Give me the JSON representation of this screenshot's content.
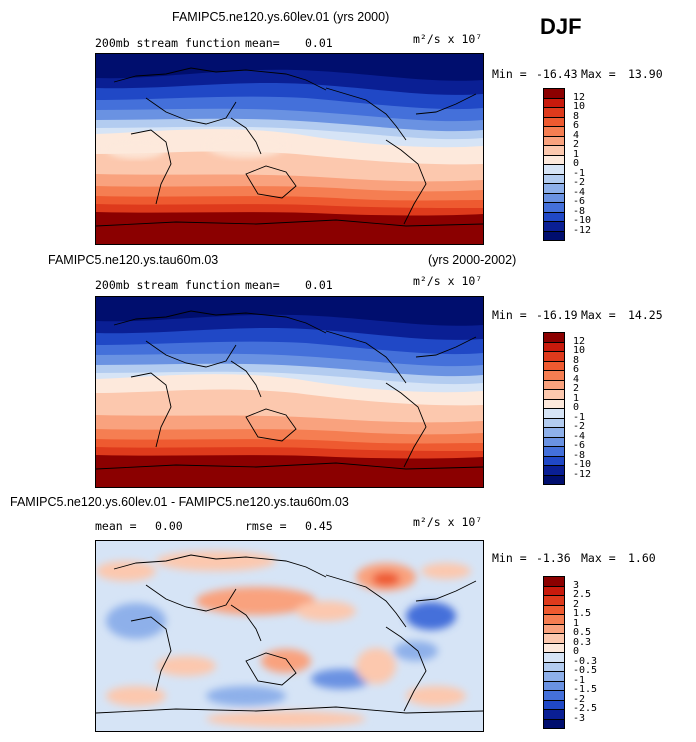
{
  "season": "DJF",
  "panels": [
    {
      "title": "FAMIPC5.ne120.ys.60lev.01 (yrs 2000)",
      "title_right": "",
      "stat1_label": "200mb stream function",
      "stat1_name": "mean=",
      "stat1_value": "0.01",
      "stat2_name": "",
      "stat2_value": "",
      "units": "m²/s x 10⁷",
      "min_label": "Min =",
      "min_value": "-16.43",
      "max_label": "Max =",
      "max_value": "13.90",
      "levels": [
        "12",
        "10",
        "8",
        "6",
        "4",
        "2",
        "1",
        "0",
        "-1",
        "-2",
        "-4",
        "-6",
        "-8",
        "-10",
        "-12"
      ],
      "colors": [
        "#8b0000",
        "#c81a0c",
        "#de3a1c",
        "#ee5a30",
        "#f57e52",
        "#f9a27e",
        "#fcc8ae",
        "#fde9dc",
        "#d6e4f6",
        "#b3ccf0",
        "#8eb0ea",
        "#6a92e2",
        "#4470da",
        "#2048c6",
        "#0a1f94",
        "#000e6e"
      ]
    },
    {
      "title": "FAMIPC5.ne120.ys.tau60m.03",
      "title_right": "(yrs 2000-2002)",
      "stat1_label": "200mb stream function",
      "stat1_name": "mean=",
      "stat1_value": "0.01",
      "stat2_name": "",
      "stat2_value": "",
      "units": "m²/s x 10⁷",
      "min_label": "Min =",
      "min_value": "-16.19",
      "max_label": "Max =",
      "max_value": "14.25",
      "levels": [
        "12",
        "10",
        "8",
        "6",
        "4",
        "2",
        "1",
        "0",
        "-1",
        "-2",
        "-4",
        "-6",
        "-8",
        "-10",
        "-12"
      ],
      "colors": [
        "#8b0000",
        "#c81a0c",
        "#de3a1c",
        "#ee5a30",
        "#f57e52",
        "#f9a27e",
        "#fcc8ae",
        "#fde9dc",
        "#d6e4f6",
        "#b3ccf0",
        "#8eb0ea",
        "#6a92e2",
        "#4470da",
        "#2048c6",
        "#0a1f94",
        "#000e6e"
      ]
    },
    {
      "title": "FAMIPC5.ne120.ys.60lev.01 - FAMIPC5.ne120.ys.tau60m.03",
      "title_right": "",
      "stat1_label": "",
      "stat1_name": "mean =",
      "stat1_value": "0.00",
      "stat2_name": "rmse =",
      "stat2_value": "0.45",
      "units": "m²/s x 10⁷",
      "min_label": "Min =",
      "min_value": "-1.36",
      "max_label": "Max =",
      "max_value": "1.60",
      "levels": [
        "3",
        "2.5",
        "2",
        "1.5",
        "1",
        "0.5",
        "0.3",
        "0",
        "-0.3",
        "-0.5",
        "-1",
        "-1.5",
        "-2",
        "-2.5",
        "-3"
      ],
      "colors": [
        "#8b0000",
        "#c81a0c",
        "#de3a1c",
        "#ee5a30",
        "#f57e52",
        "#f9a27e",
        "#fcc8ae",
        "#fde9dc",
        "#d6e4f6",
        "#b3ccf0",
        "#8eb0ea",
        "#6a92e2",
        "#4470da",
        "#2048c6",
        "#0a1f94",
        "#000e6e"
      ]
    }
  ],
  "chart_data": {
    "type": "heatmap",
    "title": "200mb stream function, DJF",
    "units": "m2/s x 10^7",
    "panels": [
      {
        "name": "FAMIPC5.ne120.ys.60lev.01 (yrs 2000)",
        "mean": 0.01,
        "min": -16.43,
        "max": 13.9,
        "contour_levels": [
          -12,
          -10,
          -8,
          -6,
          -4,
          -2,
          -1,
          0,
          1,
          2,
          4,
          6,
          8,
          10,
          12
        ]
      },
      {
        "name": "FAMIPC5.ne120.ys.tau60m.03 (yrs 2000-2002)",
        "mean": 0.01,
        "min": -16.19,
        "max": 14.25,
        "contour_levels": [
          -12,
          -10,
          -8,
          -6,
          -4,
          -2,
          -1,
          0,
          1,
          2,
          4,
          6,
          8,
          10,
          12
        ]
      },
      {
        "name": "FAMIPC5.ne120.ys.60lev.01 - FAMIPC5.ne120.ys.tau60m.03",
        "mean": 0.0,
        "rmse": 0.45,
        "min": -1.36,
        "max": 1.6,
        "contour_levels": [
          -3,
          -2.5,
          -2,
          -1.5,
          -1,
          -0.5,
          -0.3,
          0,
          0.3,
          0.5,
          1,
          1.5,
          2,
          2.5,
          3
        ]
      }
    ]
  }
}
